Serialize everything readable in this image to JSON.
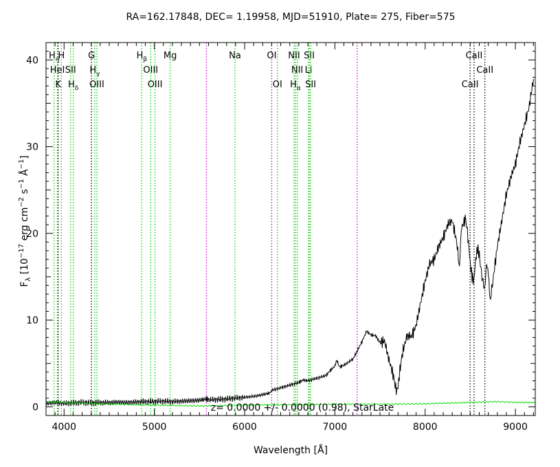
{
  "chart_data": {
    "type": "line",
    "title": "RA=162.17848, DEC=  1.19958, MJD=51910, Plate=  275, Fiber=575",
    "xlabel": "Wavelength [Å]",
    "ylabel_main": "F",
    "ylabel_sub": "λ",
    "ylabel_rest": " [10",
    "ylabel_exp1": "−17",
    "ylabel_mid1": " erg cm",
    "ylabel_exp2": "−2",
    "ylabel_mid2": " s",
    "ylabel_exp3": "−1",
    "ylabel_mid3": " Å",
    "ylabel_exp4": "−1",
    "ylabel_end": "]",
    "annotation": "z=  0.0000 +/-  0.0000 (0.98), StarLate",
    "xlim": [
      3800,
      9220
    ],
    "ylim": [
      -1.0,
      42.0
    ],
    "xticks": [
      4000,
      5000,
      6000,
      7000,
      8000,
      9000
    ],
    "yticks": [
      0,
      10,
      20,
      30,
      40
    ],
    "series": [
      {
        "color": "#000000",
        "points": [
          [
            3800,
            0.4
          ],
          [
            3900,
            0.5
          ],
          [
            4000,
            0.4
          ],
          [
            4100,
            0.45
          ],
          [
            4200,
            0.5
          ],
          [
            4300,
            0.45
          ],
          [
            4400,
            0.5
          ],
          [
            4500,
            0.5
          ],
          [
            4600,
            0.55
          ],
          [
            4700,
            0.5
          ],
          [
            4800,
            0.55
          ],
          [
            4900,
            0.6
          ],
          [
            5000,
            0.6
          ],
          [
            5100,
            0.65
          ],
          [
            5200,
            0.6
          ],
          [
            5300,
            0.65
          ],
          [
            5400,
            0.7
          ],
          [
            5500,
            0.75
          ],
          [
            5580,
            0.9
          ],
          [
            5600,
            0.8
          ],
          [
            5700,
            0.85
          ],
          [
            5800,
            0.9
          ],
          [
            5900,
            1.0
          ],
          [
            6000,
            1.1
          ],
          [
            6100,
            1.2
          ],
          [
            6200,
            1.4
          ],
          [
            6280,
            1.6
          ],
          [
            6300,
            1.9
          ],
          [
            6400,
            2.2
          ],
          [
            6500,
            2.5
          ],
          [
            6600,
            2.8
          ],
          [
            6650,
            3.1
          ],
          [
            6700,
            3.0
          ],
          [
            6800,
            3.3
          ],
          [
            6900,
            3.6
          ],
          [
            6950,
            4.2
          ],
          [
            7000,
            4.7
          ],
          [
            7020,
            5.4
          ],
          [
            7050,
            4.6
          ],
          [
            7100,
            4.8
          ],
          [
            7200,
            5.5
          ],
          [
            7250,
            6.5
          ],
          [
            7300,
            7.5
          ],
          [
            7350,
            8.7
          ],
          [
            7400,
            8.3
          ],
          [
            7450,
            8.2
          ],
          [
            7500,
            7.4
          ],
          [
            7550,
            7.6
          ],
          [
            7600,
            5.4
          ],
          [
            7650,
            3.5
          ],
          [
            7680,
            1.8
          ],
          [
            7700,
            2.3
          ],
          [
            7720,
            4.2
          ],
          [
            7750,
            6.3
          ],
          [
            7800,
            8.2
          ],
          [
            7850,
            8.1
          ],
          [
            7900,
            9.4
          ],
          [
            7950,
            12.0
          ],
          [
            8000,
            14.5
          ],
          [
            8050,
            16.5
          ],
          [
            8100,
            17.0
          ],
          [
            8150,
            18.5
          ],
          [
            8200,
            19.5
          ],
          [
            8250,
            21.0
          ],
          [
            8300,
            21.5
          ],
          [
            8350,
            19.0
          ],
          [
            8380,
            16.0
          ],
          [
            8400,
            20.5
          ],
          [
            8450,
            21.8
          ],
          [
            8480,
            19.0
          ],
          [
            8500,
            16.5
          ],
          [
            8520,
            15.0
          ],
          [
            8540,
            14.5
          ],
          [
            8560,
            17.0
          ],
          [
            8580,
            18.3
          ],
          [
            8600,
            17.5
          ],
          [
            8630,
            15.0
          ],
          [
            8660,
            13.5
          ],
          [
            8680,
            16.5
          ],
          [
            8700,
            15.5
          ],
          [
            8720,
            12.2
          ],
          [
            8750,
            14.5
          ],
          [
            8800,
            18.5
          ],
          [
            8850,
            21.5
          ],
          [
            8900,
            24.5
          ],
          [
            8950,
            26.5
          ],
          [
            9000,
            28.0
          ],
          [
            9050,
            30.5
          ],
          [
            9100,
            32.5
          ],
          [
            9150,
            34.5
          ],
          [
            9200,
            37.8
          ]
        ]
      },
      {
        "color": "#00dd00",
        "points": [
          [
            3800,
            0.6
          ],
          [
            4000,
            0.5
          ],
          [
            4500,
            0.3
          ],
          [
            5000,
            0.2
          ],
          [
            5500,
            0.1
          ],
          [
            5800,
            0.15
          ],
          [
            6000,
            0.2
          ],
          [
            6500,
            0.25
          ],
          [
            7000,
            0.3
          ],
          [
            7500,
            0.3
          ],
          [
            8000,
            0.35
          ],
          [
            8500,
            0.5
          ],
          [
            8800,
            0.6
          ],
          [
            9000,
            0.5
          ],
          [
            9220,
            0.5
          ]
        ]
      }
    ],
    "lines": [
      {
        "x": 3889,
        "label": "H",
        "sub": "η",
        "row": 0,
        "color": "#00cc00"
      },
      {
        "x": 3970,
        "label": "H",
        "sub": "",
        "row": 0,
        "color": "#00cc00"
      },
      {
        "x": 3926,
        "label": "HeI",
        "sub": "",
        "row": 1,
        "color": "#00cc00"
      },
      {
        "x": 4072,
        "label": "SII",
        "sub": "",
        "row": 1,
        "color": "#00cc00"
      },
      {
        "x": 3934,
        "label": "K",
        "sub": "",
        "row": 2,
        "color": "#000000"
      },
      {
        "x": 4102,
        "label": "H",
        "sub": "δ",
        "row": 2,
        "color": "#00cc00"
      },
      {
        "x": 4304,
        "label": "G",
        "sub": "",
        "row": 0,
        "color": "#000000"
      },
      {
        "x": 4340,
        "label": "H",
        "sub": "γ",
        "row": 1,
        "color": "#00cc00"
      },
      {
        "x": 4363,
        "label": "OIII",
        "sub": "",
        "row": 2,
        "color": "#00cc00"
      },
      {
        "x": 4861,
        "label": "H",
        "sub": "β",
        "row": 0,
        "color": "#00cc00"
      },
      {
        "x": 4959,
        "label": "OIII",
        "sub": "",
        "row": 1,
        "color": "#00cc00"
      },
      {
        "x": 5007,
        "label": "OIII",
        "sub": "",
        "row": 2,
        "color": "#00cc00"
      },
      {
        "x": 5175,
        "label": "Mg",
        "sub": "",
        "row": 0,
        "color": "#00cc00"
      },
      {
        "x": 5577,
        "label": "",
        "sub": "",
        "row": 0,
        "color": "#cc00cc"
      },
      {
        "x": 5893,
        "label": "Na",
        "sub": "",
        "row": 0,
        "color": "#00cc00"
      },
      {
        "x": 6300,
        "label": "OI",
        "sub": "",
        "row": 0,
        "color": "#cc00cc"
      },
      {
        "x": 6364,
        "label": "OI",
        "sub": "",
        "row": 2,
        "color": "#00cc00"
      },
      {
        "x": 6548,
        "label": "NII",
        "sub": "",
        "row": 0,
        "color": "#00cc00"
      },
      {
        "x": 6583,
        "label": "NII",
        "sub": "",
        "row": 1,
        "color": "#00cc00"
      },
      {
        "x": 6563,
        "label": "H",
        "sub": "α",
        "row": 2,
        "color": "#00cc00"
      },
      {
        "x": 6708,
        "label": "Li",
        "sub": "",
        "row": 1,
        "color": "#00cc00"
      },
      {
        "x": 6716,
        "label": "SII",
        "sub": "",
        "row": 0,
        "color": "#00cc00"
      },
      {
        "x": 6731,
        "label": "SII",
        "sub": "",
        "row": 2,
        "color": "#00cc00"
      },
      {
        "x": 7246,
        "label": "",
        "sub": "",
        "row": 0,
        "color": "#cc00cc"
      },
      {
        "x": 8498,
        "label": "CaII",
        "sub": "",
        "row": 2,
        "color": "#000000"
      },
      {
        "x": 8542,
        "label": "CaII",
        "sub": "",
        "row": 0,
        "color": "#000000"
      },
      {
        "x": 8662,
        "label": "CaII",
        "sub": "",
        "row": 1,
        "color": "#000000"
      }
    ]
  }
}
